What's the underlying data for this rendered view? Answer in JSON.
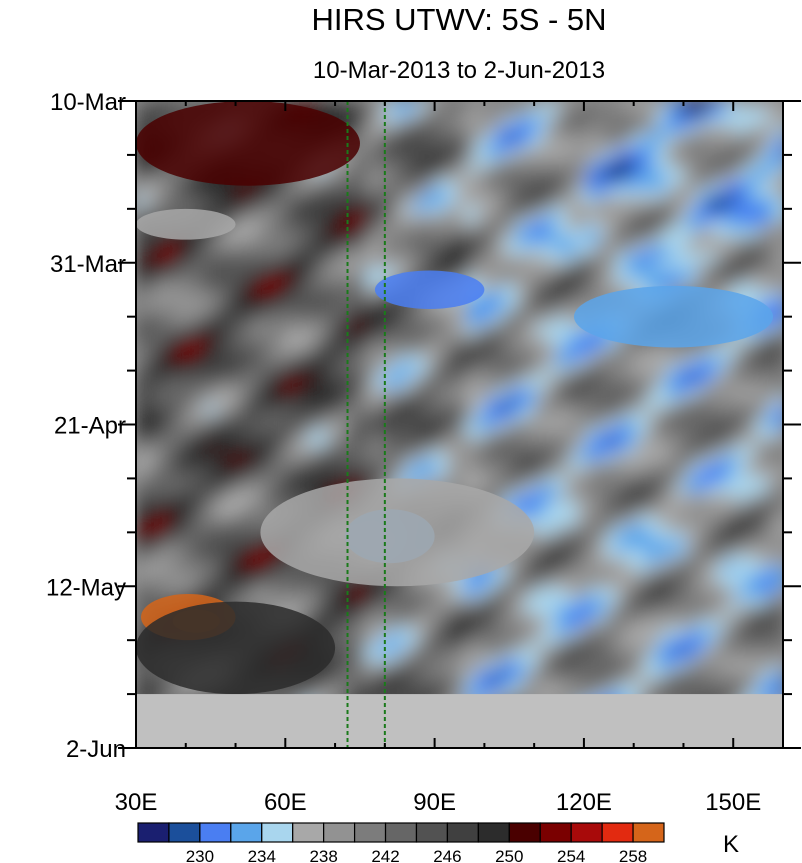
{
  "chart_data": {
    "type": "heatmap",
    "title": "HIRS UTWV: 5S - 5N",
    "subtitle": "10-Mar-2013 to 2-Jun-2013",
    "x_axis": {
      "range": [
        30,
        160
      ],
      "ticks": [
        {
          "value": 30,
          "label": "30E"
        },
        {
          "value": 60,
          "label": "60E"
        },
        {
          "value": 90,
          "label": "90E"
        },
        {
          "value": 120,
          "label": "120E"
        },
        {
          "value": 150,
          "label": "150E"
        }
      ]
    },
    "y_axis": {
      "range": [
        "2013-03-10",
        "2013-06-02"
      ],
      "ticks": [
        {
          "value": "2013-03-10",
          "label": "10-Mar"
        },
        {
          "value": "2013-03-31",
          "label": "31-Mar"
        },
        {
          "value": "2013-04-21",
          "label": "21-Apr"
        },
        {
          "value": "2013-05-12",
          "label": "12-May"
        },
        {
          "value": "2013-06-02",
          "label": "2-Jun"
        }
      ]
    },
    "reference_lines_x": [
      72.5,
      80
    ],
    "missing_after": "2013-05-26",
    "colorbar": {
      "unit": "K",
      "levels": [
        228,
        230,
        232,
        234,
        236,
        238,
        240,
        242,
        244,
        246,
        248,
        250,
        252,
        254,
        256,
        258
      ],
      "labeled": [
        230,
        234,
        238,
        242,
        246,
        250,
        254,
        258
      ],
      "colors": [
        "#1a1f70",
        "#1b4f9b",
        "#4a7ef2",
        "#5aa5ea",
        "#a9d6ee",
        "#a8a8a8",
        "#929292",
        "#7c7c7c",
        "#666666",
        "#525252",
        "#404040",
        "#2c2c2c",
        "#4a0000",
        "#7a0000",
        "#a80a0a",
        "#e22a10",
        "#d5651a"
      ]
    },
    "features": [
      {
        "kind": "wet",
        "value": 231,
        "x": [
          78,
          100
        ],
        "y": [
          "2013-04-01",
          "2013-04-06"
        ]
      },
      {
        "kind": "wet",
        "value": 233,
        "x": [
          118,
          158
        ],
        "y": [
          "2013-04-03",
          "2013-04-11"
        ]
      },
      {
        "kind": "wet",
        "value": 232,
        "x": [
          72,
          90
        ],
        "y": [
          "2013-05-02",
          "2013-05-09"
        ]
      },
      {
        "kind": "moist",
        "value": 236,
        "x": [
          30,
          50
        ],
        "y": [
          "2013-03-24",
          "2013-03-28"
        ]
      },
      {
        "kind": "moist",
        "value": 236,
        "x": [
          55,
          110
        ],
        "y": [
          "2013-04-28",
          "2013-05-12"
        ]
      },
      {
        "kind": "dry",
        "value": 258,
        "x": [
          31,
          50
        ],
        "y": [
          "2013-05-13",
          "2013-05-19"
        ]
      },
      {
        "kind": "dry",
        "value": 250,
        "x": [
          30,
          75
        ],
        "y": [
          "2013-03-10",
          "2013-03-21"
        ]
      },
      {
        "kind": "dry",
        "value": 248,
        "x": [
          30,
          70
        ],
        "y": [
          "2013-05-14",
          "2013-05-26"
        ]
      }
    ]
  }
}
